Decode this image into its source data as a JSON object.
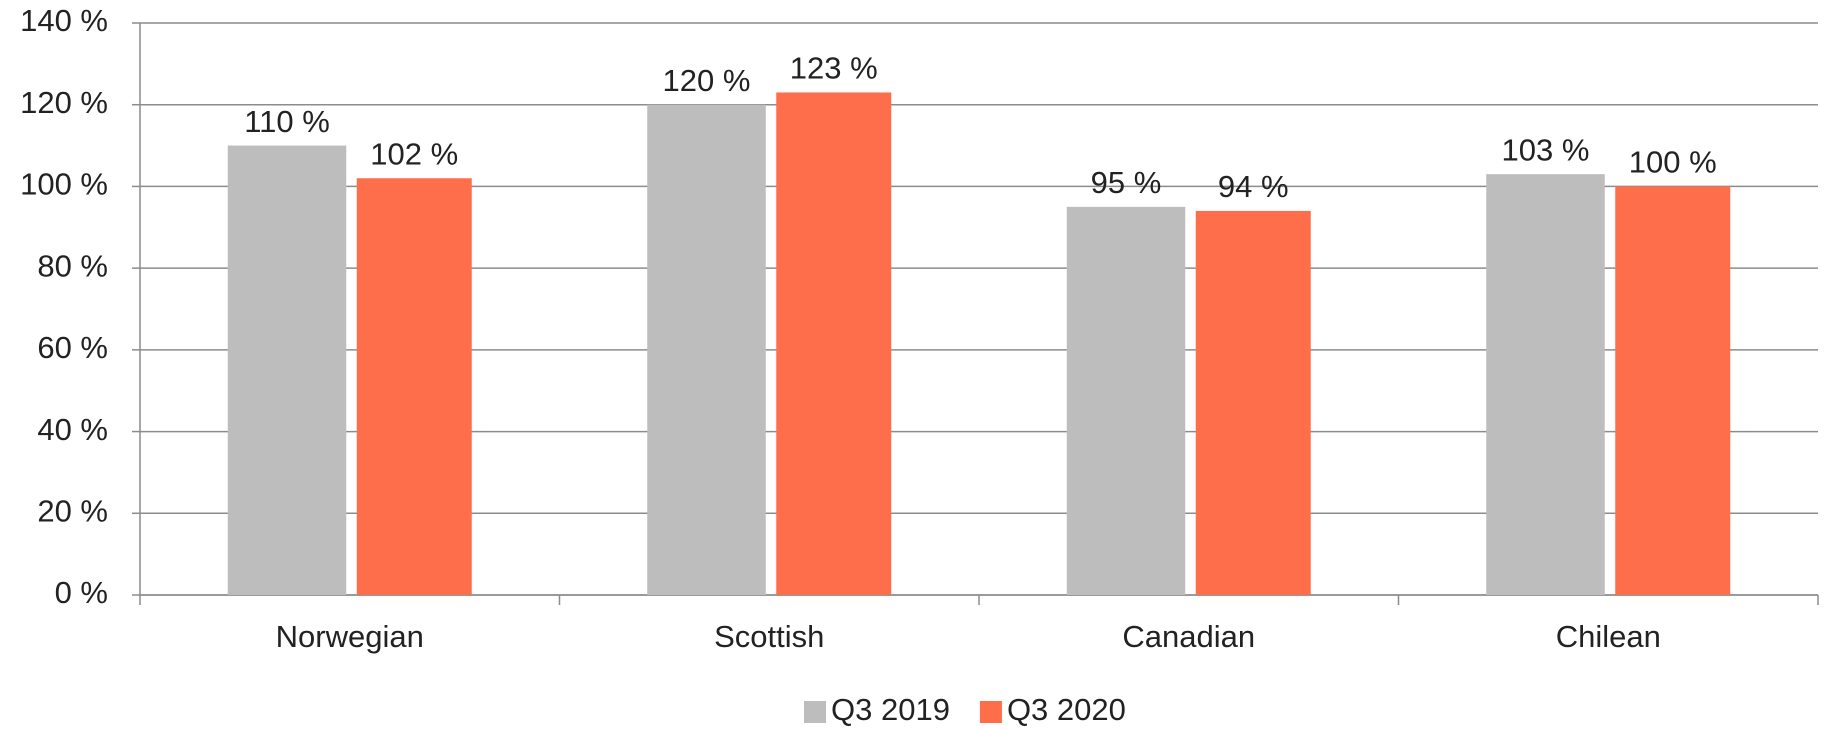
{
  "chart_data": {
    "type": "bar",
    "categories": [
      "Norwegian",
      "Scottish",
      "Canadian",
      "Chilean"
    ],
    "series": [
      {
        "name": "Q3 2019",
        "color": "#bcbdbc",
        "values": [
          110,
          120,
          95,
          103
        ],
        "value_labels": [
          "110 %",
          "120 %",
          "95 %",
          "103 %"
        ]
      },
      {
        "name": "Q3 2020",
        "color": "#ff6e4a",
        "values": [
          102,
          123,
          94,
          100
        ],
        "value_labels": [
          "102 %",
          "123 %",
          "94 %",
          "100 %"
        ]
      }
    ],
    "ylim": [
      0,
      140
    ],
    "yticks": [
      {
        "value": 0,
        "label": "0 %"
      },
      {
        "value": 20,
        "label": "20 %"
      },
      {
        "value": 40,
        "label": "40 %"
      },
      {
        "value": 60,
        "label": "60 %"
      },
      {
        "value": 80,
        "label": "80 %"
      },
      {
        "value": 100,
        "label": "100 %"
      },
      {
        "value": 120,
        "label": "120 %"
      },
      {
        "value": 140,
        "label": "140 %"
      }
    ],
    "grid": true,
    "legend": "bottom"
  }
}
